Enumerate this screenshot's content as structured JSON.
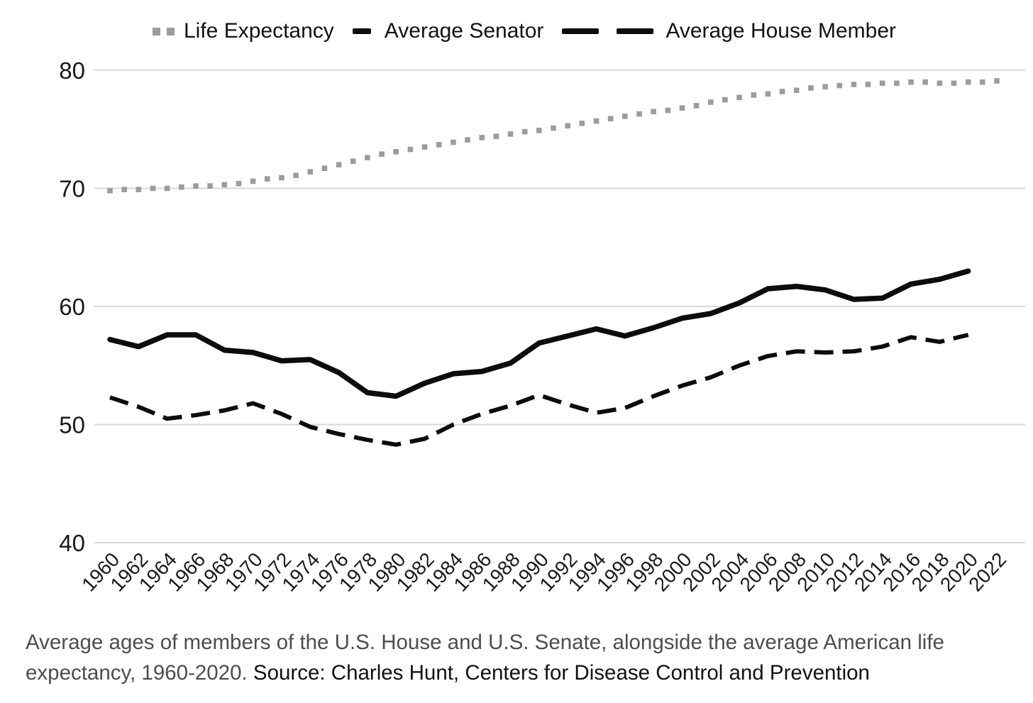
{
  "legend": {
    "items": [
      {
        "label": "Life Expectancy",
        "marker": "gray-dotted-squares",
        "series": "Life Expectancy"
      },
      {
        "label": "Average Senator",
        "marker": "black-solid-dash",
        "series": "Average Senator"
      },
      {
        "label": "Average House Member",
        "marker": "black-double-dash",
        "series": "Average House Member"
      }
    ]
  },
  "caption": {
    "description": "Average ages of members of the U.S. House and U.S. Senate, alongside the average American life expectancy, 1960-2020.",
    "source": "Source: Charles Hunt, Centers for Disease Control and Prevention"
  },
  "colors": {
    "line_black": "#0c0c0c",
    "life_gray": "#9c9c9c",
    "grid": "#d9d9d9",
    "axis_text": "#1a1a1a",
    "caption_gray": "#4d4d4d",
    "caption_black": "#111111",
    "background": "#ffffff"
  },
  "chart_data": {
    "type": "line",
    "title": "",
    "xlabel": "",
    "ylabel": "",
    "xlim": [
      1960,
      2022
    ],
    "ylim": [
      40,
      82
    ],
    "yticks": [
      80,
      70,
      60,
      50,
      40
    ],
    "xticks": [
      "1960",
      "1962",
      "1964",
      "1966",
      "1968",
      "1970",
      "1972",
      "1974",
      "1976",
      "1978",
      "1980",
      "1982",
      "1984",
      "1986",
      "1988",
      "1990",
      "1992",
      "1994",
      "1996",
      "1998",
      "2000",
      "2002",
      "2004",
      "2006",
      "2008",
      "2010",
      "2012",
      "2014",
      "2016",
      "2018",
      "2020",
      "2022"
    ],
    "grid": "horizontal",
    "legend_position": "top",
    "series": [
      {
        "name": "Life Expectancy",
        "style": "dotted",
        "color": "#9c9c9c",
        "x": [
          1960,
          1961,
          1962,
          1963,
          1964,
          1965,
          1966,
          1967,
          1968,
          1969,
          1970,
          1971,
          1972,
          1973,
          1974,
          1975,
          1976,
          1977,
          1978,
          1979,
          1980,
          1981,
          1982,
          1983,
          1984,
          1985,
          1986,
          1987,
          1988,
          1989,
          1990,
          1991,
          1992,
          1993,
          1994,
          1995,
          1996,
          1997,
          1998,
          1999,
          2000,
          2001,
          2002,
          2003,
          2004,
          2005,
          2006,
          2007,
          2008,
          2009,
          2010,
          2011,
          2012,
          2013,
          2014,
          2015,
          2016,
          2017,
          2018,
          2019,
          2020,
          2021,
          2022
        ],
        "values": [
          69.8,
          69.9,
          69.9,
          70.0,
          70.0,
          70.1,
          70.2,
          70.2,
          70.3,
          70.4,
          70.6,
          70.8,
          70.9,
          71.1,
          71.4,
          71.7,
          72.0,
          72.3,
          72.6,
          72.9,
          73.1,
          73.3,
          73.5,
          73.7,
          73.9,
          74.1,
          74.3,
          74.4,
          74.6,
          74.8,
          74.9,
          75.1,
          75.3,
          75.5,
          75.7,
          75.9,
          76.1,
          76.3,
          76.5,
          76.6,
          76.8,
          77.0,
          77.3,
          77.5,
          77.7,
          77.9,
          78.0,
          78.2,
          78.3,
          78.5,
          78.6,
          78.7,
          78.8,
          78.8,
          78.9,
          78.9,
          79.0,
          79.0,
          78.9,
          78.9,
          79.0,
          79.0,
          79.1
        ]
      },
      {
        "name": "Average Senator",
        "style": "solid",
        "color": "#0c0c0c",
        "x": [
          1960,
          1962,
          1964,
          1966,
          1968,
          1970,
          1972,
          1974,
          1976,
          1978,
          1980,
          1982,
          1984,
          1986,
          1988,
          1990,
          1992,
          1994,
          1996,
          1998,
          2000,
          2002,
          2004,
          2006,
          2008,
          2010,
          2012,
          2014,
          2016,
          2018,
          2020
        ],
        "values": [
          57.2,
          56.6,
          57.6,
          57.6,
          56.3,
          56.1,
          55.4,
          55.5,
          54.4,
          52.7,
          52.4,
          53.5,
          54.3,
          54.5,
          55.2,
          56.9,
          57.5,
          58.1,
          57.5,
          58.2,
          59.0,
          59.4,
          60.3,
          61.5,
          61.7,
          61.4,
          60.6,
          60.7,
          61.9,
          62.3,
          63.0
        ]
      },
      {
        "name": "Average House Member",
        "style": "dashed",
        "color": "#0c0c0c",
        "x": [
          1960,
          1962,
          1964,
          1966,
          1968,
          1970,
          1972,
          1974,
          1976,
          1978,
          1980,
          1982,
          1984,
          1986,
          1988,
          1990,
          1992,
          1994,
          1996,
          1998,
          2000,
          2002,
          2004,
          2006,
          2008,
          2010,
          2012,
          2014,
          2016,
          2018,
          2020
        ],
        "values": [
          52.3,
          51.5,
          50.5,
          50.8,
          51.2,
          51.8,
          50.9,
          49.8,
          49.2,
          48.7,
          48.3,
          48.8,
          50.0,
          50.9,
          51.6,
          52.5,
          51.7,
          51.0,
          51.4,
          52.4,
          53.3,
          54.0,
          55.0,
          55.8,
          56.2,
          56.1,
          56.2,
          56.6,
          57.4,
          57.0,
          57.6
        ]
      }
    ]
  }
}
